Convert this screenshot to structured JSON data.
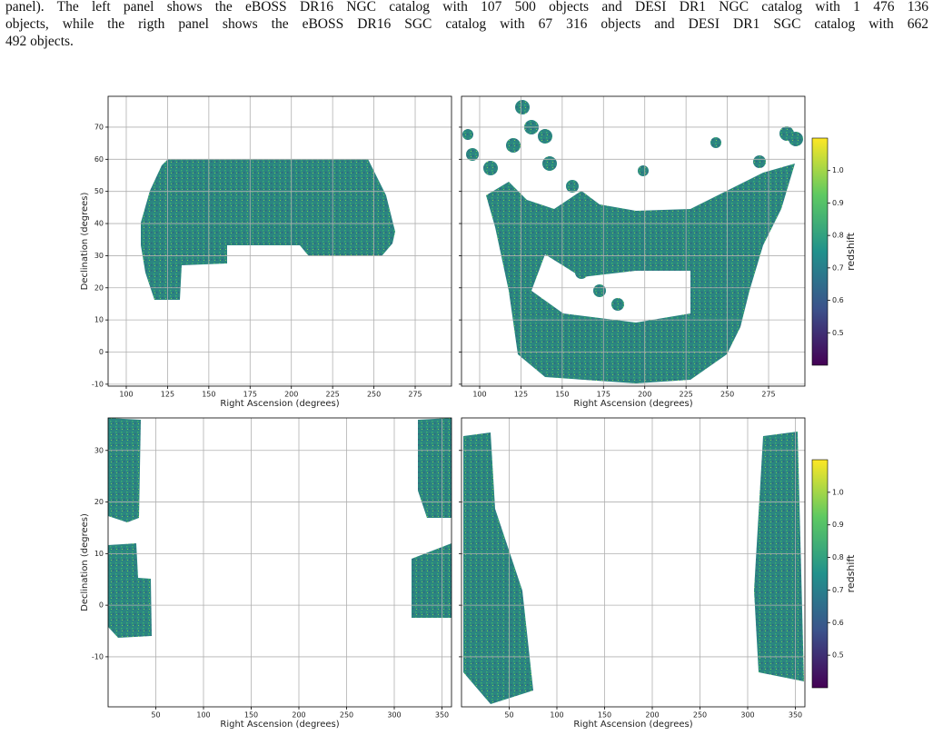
{
  "caption": {
    "lines": [
      "panel). The left panel shows the eBOSS DR16 NGC catalog with 107 500 objects and DESI DR1 NGC catalog with 1 476 136",
      "objects, while the rigth panel shows the eBOSS DR16 SGC catalog with 67 316 objects and DESI DR1 SGC catalog with 662",
      "492 objects."
    ]
  },
  "chart_data": [
    {
      "type": "scatter",
      "xlabel": "Right Ascension (degrees)",
      "ylabel": "Declination (degrees)",
      "xlim": [
        89,
        297
      ],
      "ylim": [
        -10.6,
        79.6
      ],
      "xticks": [
        100,
        125,
        150,
        175,
        200,
        225,
        250,
        275
      ],
      "yticks": [
        -10,
        0,
        10,
        20,
        30,
        40,
        50,
        60,
        70
      ],
      "ytick_labels": true,
      "grid": true
    },
    {
      "type": "scatter",
      "xlabel": "Right Ascension (degrees)",
      "xlim": [
        89,
        297
      ],
      "ylim": [
        -10.6,
        79.6
      ],
      "xticks": [
        100,
        125,
        150,
        175,
        200,
        225,
        250,
        275
      ],
      "yticks": [
        -10,
        0,
        10,
        20,
        30,
        40,
        50,
        60,
        70
      ],
      "ytick_labels": false,
      "grid": true,
      "colorbar": {
        "label": "redshift",
        "lim": [
          0.4,
          1.1
        ],
        "ticks": [
          0.5,
          0.6,
          0.7,
          0.8,
          0.9,
          {
            "value": 1,
            "label": "1.0"
          }
        ]
      }
    },
    {
      "type": "scatter",
      "xlabel": "Right Ascension (degrees)",
      "ylabel": "Declination (degrees)",
      "xlim": [
        0,
        360
      ],
      "ylim": [
        -19.7,
        36.3
      ],
      "xticks": [
        50,
        100,
        150,
        200,
        250,
        300,
        350
      ],
      "yticks": [
        -10,
        0,
        10,
        20,
        30
      ],
      "ytick_labels": true,
      "grid": true
    },
    {
      "type": "scatter",
      "xlabel": "Right Ascension (degrees)",
      "xlim": [
        0,
        360
      ],
      "ylim": [
        -19.7,
        36.3
      ],
      "xticks": [
        50,
        100,
        150,
        200,
        250,
        300,
        350
      ],
      "yticks": [
        -10,
        0,
        10,
        20,
        30
      ],
      "ytick_labels": false,
      "grid": true,
      "colorbar": {
        "label": "redshift",
        "lim": [
          0.4,
          1.1
        ],
        "ticks": [
          0.5,
          0.6,
          0.7,
          0.8,
          0.9,
          {
            "value": 1,
            "label": "1.0"
          }
        ]
      }
    }
  ]
}
